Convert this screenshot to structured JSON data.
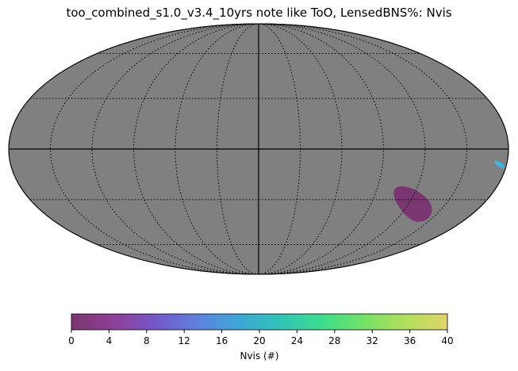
{
  "title": "too_combined_s1.0_v3.4_10yrs note like ToO, LensedBNS%: Nvis",
  "map": {
    "projection": "Mollweide",
    "background_color": "#808080",
    "grid": true,
    "graticule_lon_step_deg": 30,
    "graticule_lat_step_deg": 30,
    "regions": [
      {
        "name": "main-patch",
        "value_range": [
          0,
          4
        ],
        "color": "#7a3670",
        "lon_range_deg": [
          100,
          150
        ],
        "lat_range_deg": [
          -48,
          -18
        ]
      },
      {
        "name": "small-patch",
        "value_range": [
          16,
          24
        ],
        "color": "#3fb3e0",
        "lon_range_deg": [
          170,
          180
        ],
        "lat_range_deg": [
          -12,
          -6
        ]
      }
    ]
  },
  "colorbar": {
    "label": "Nvis (#)",
    "min": 0,
    "max": 40,
    "ticks": [
      "0",
      "4",
      "8",
      "12",
      "16",
      "20",
      "24",
      "28",
      "32",
      "36",
      "40"
    ],
    "colormap": "viridis-like",
    "stops": [
      "#7a3670",
      "#8e3f96",
      "#7557c9",
      "#5f80e0",
      "#3ea6d6",
      "#2fc4b8",
      "#3ddd8c",
      "#73e266",
      "#b2de5c",
      "#e0d56a"
    ]
  }
}
